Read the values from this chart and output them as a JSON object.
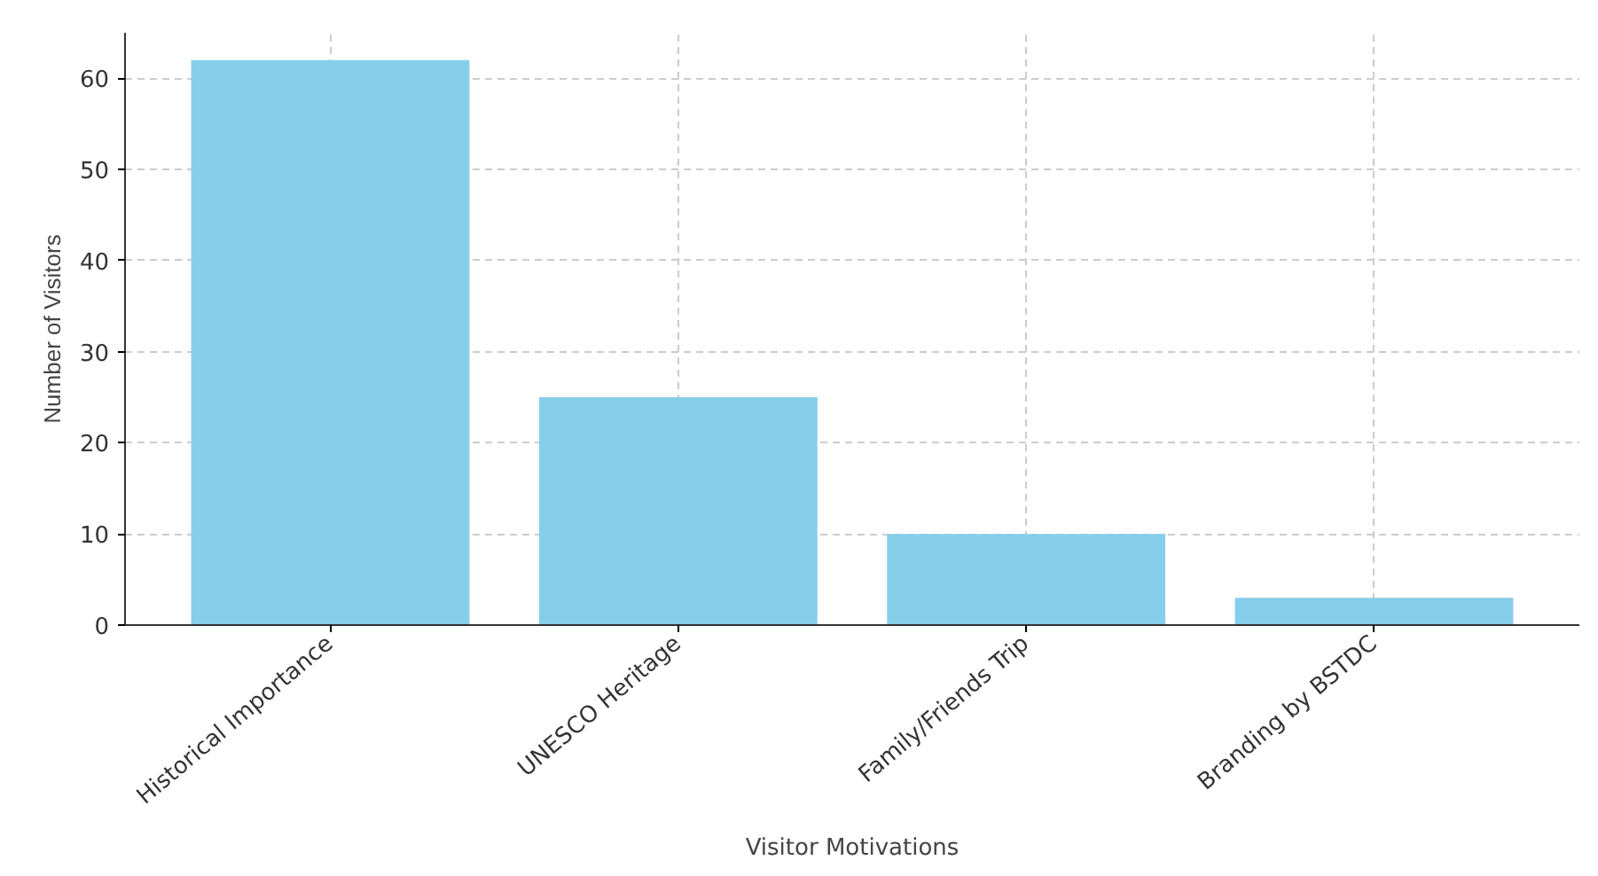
{
  "chart_data": {
    "type": "bar",
    "xlabel": "Visitor Motivations",
    "ylabel": "Number of Visitors",
    "categories": [
      "Historical Importance",
      "UNESCO Heritage",
      "Family/Friends Trip",
      "Branding by BSTDC"
    ],
    "values": [
      62,
      25,
      10,
      3
    ],
    "color": "#87ceeb",
    "ylim": [
      0,
      65
    ],
    "yticks": [
      0,
      10,
      20,
      30,
      40,
      50,
      60
    ],
    "grid": true
  }
}
